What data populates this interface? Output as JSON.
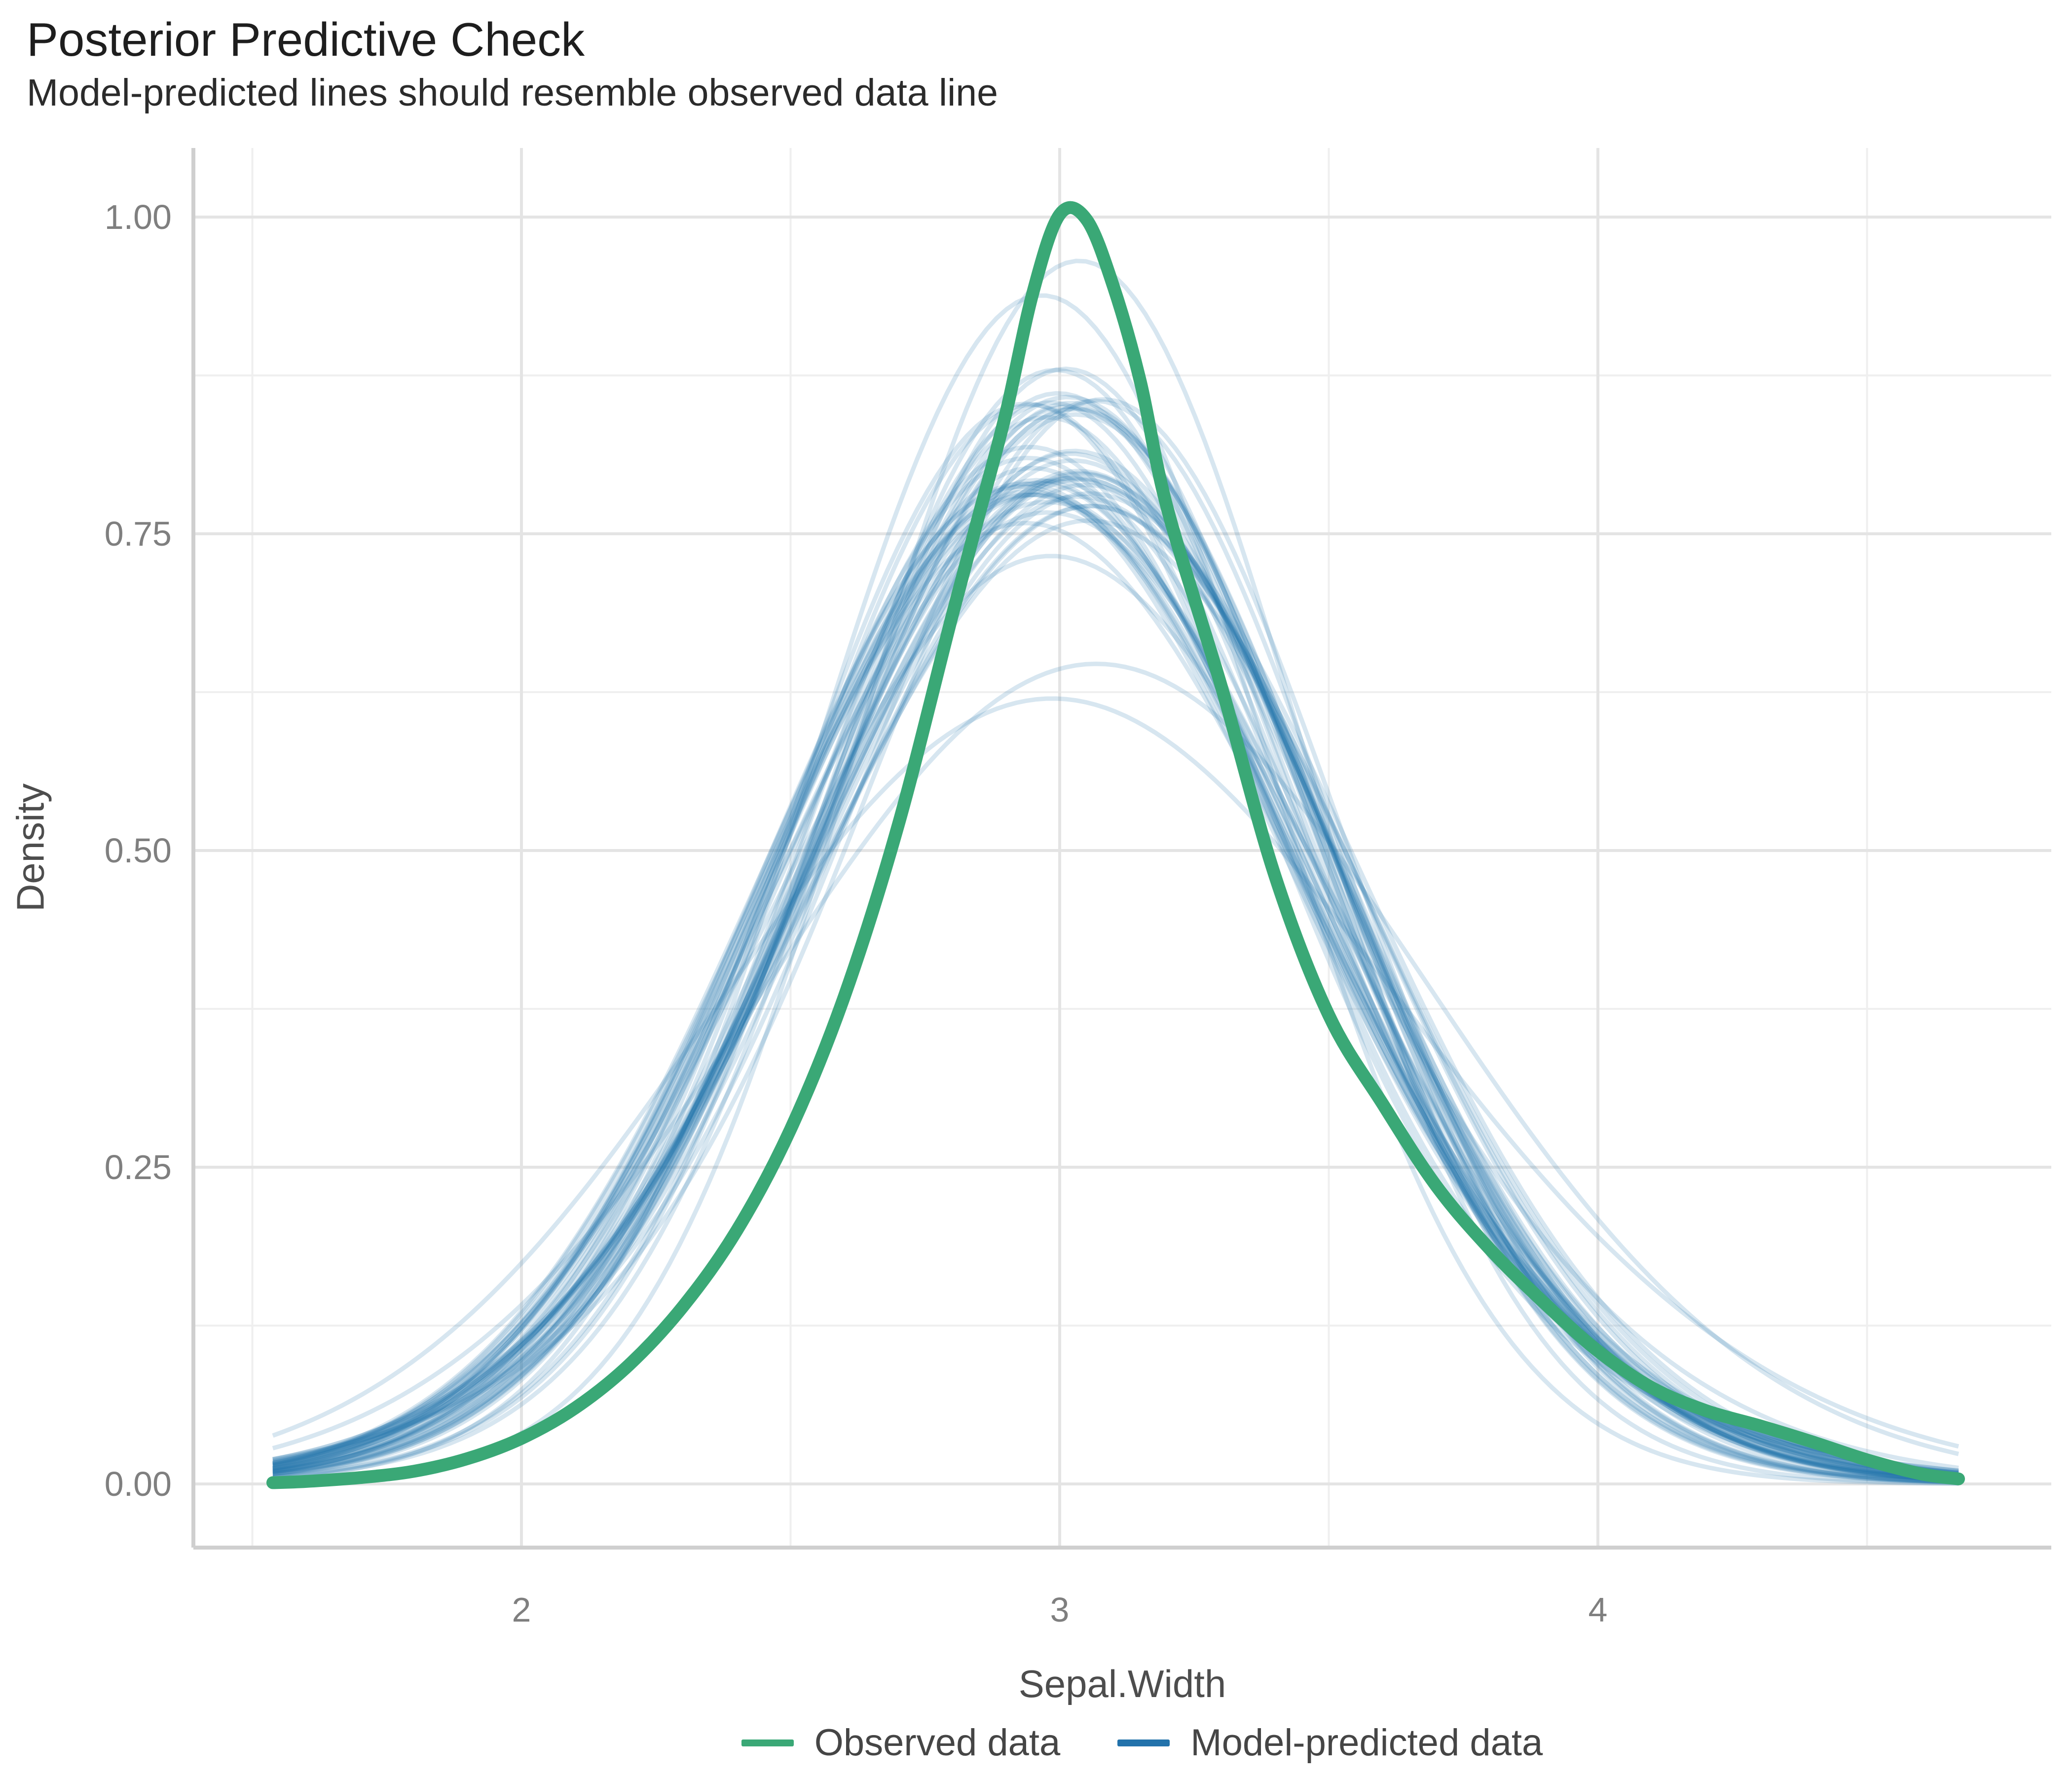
{
  "chart_data": {
    "type": "line",
    "title": "Posterior Predictive Check",
    "subtitle": "Model-predicted lines should resemble observed data line",
    "xlabel": "Sepal.Width",
    "ylabel": "Density",
    "xlim": [
      1.39,
      4.845
    ],
    "ylim": [
      -0.05,
      1.055
    ],
    "grid": {
      "x_major": [
        2,
        3,
        4
      ],
      "x_minor": [
        1.5,
        2.5,
        3.5,
        4.5
      ],
      "y_major": [
        0,
        0.25,
        0.5,
        0.75,
        1.0
      ],
      "y_minor": [
        0.125,
        0.375,
        0.625,
        0.875
      ]
    },
    "x_ticks": [
      {
        "value": 2,
        "label": "2"
      },
      {
        "value": 3,
        "label": "3"
      },
      {
        "value": 4,
        "label": "4"
      }
    ],
    "y_ticks": [
      {
        "value": 0,
        "label": "0.00"
      },
      {
        "value": 0.25,
        "label": "0.25"
      },
      {
        "value": 0.5,
        "label": "0.50"
      },
      {
        "value": 0.75,
        "label": "0.75"
      },
      {
        "value": 1,
        "label": "1.00"
      }
    ],
    "legend": {
      "position": "bottom",
      "items": [
        {
          "name": "Observed data",
          "color": "#3aa876"
        },
        {
          "name": "Model-predicted data",
          "color": "#2272ab"
        }
      ]
    },
    "series": {
      "observed": {
        "name": "Observed data",
        "color": "#3aa876",
        "stroke_width": 26,
        "x": [
          1.538,
          1.6,
          1.7,
          1.8,
          1.9,
          2.0,
          2.1,
          2.2,
          2.3,
          2.4,
          2.5,
          2.6,
          2.7,
          2.8,
          2.85,
          2.9,
          2.95,
          3.0,
          3.05,
          3.1,
          3.15,
          3.2,
          3.3,
          3.4,
          3.5,
          3.6,
          3.7,
          3.8,
          3.9,
          4.0,
          4.1,
          4.2,
          4.3,
          4.4,
          4.5,
          4.6,
          4.67
        ],
        "y": [
          0.001,
          0.002,
          0.005,
          0.01,
          0.02,
          0.036,
          0.06,
          0.094,
          0.14,
          0.2,
          0.28,
          0.385,
          0.52,
          0.685,
          0.765,
          0.845,
          0.94,
          1.002,
          0.998,
          0.945,
          0.87,
          0.77,
          0.63,
          0.48,
          0.37,
          0.3,
          0.235,
          0.185,
          0.143,
          0.105,
          0.076,
          0.058,
          0.046,
          0.033,
          0.019,
          0.008,
          0.004
        ]
      },
      "predicted": {
        "name": "Model-predicted data",
        "color": "#2272ab",
        "stroke_width": 9,
        "stroke_opacity": 0.18,
        "n_draws": 50,
        "x_range": [
          1.538,
          4.67
        ],
        "draw_params_format": "[mean1, sd1, mean2_offset, sd2, weight1] ; density = weight1*Normal(mean1,sd1) + (1-weight1)*Normal(mean1+mean2_offset,sd2)",
        "draws": [
          [
            2.98,
            0.46,
            0.2,
            0.55,
            0.7
          ],
          [
            3.05,
            0.44,
            -0.22,
            0.52,
            0.75
          ],
          [
            2.92,
            0.5,
            0.28,
            0.6,
            0.65
          ],
          [
            3.1,
            0.42,
            -0.3,
            0.58,
            0.72
          ],
          [
            3.02,
            0.405,
            0.1,
            0.44,
            0.8
          ],
          [
            2.88,
            0.47,
            0.3,
            0.55,
            0.68
          ],
          [
            3.08,
            0.48,
            -0.18,
            0.5,
            0.66
          ],
          [
            2.95,
            0.43,
            0.25,
            0.62,
            0.74
          ],
          [
            2.98,
            0.415,
            -0.08,
            0.46,
            0.78
          ],
          [
            2.9,
            0.45,
            0.32,
            0.58,
            0.7
          ],
          [
            3.12,
            0.5,
            -0.26,
            0.54,
            0.69
          ],
          [
            2.97,
            0.41,
            0.22,
            0.6,
            0.73
          ],
          [
            3.04,
            0.53,
            -0.15,
            0.49,
            0.64
          ],
          [
            2.86,
            0.48,
            0.35,
            0.56,
            0.67
          ],
          [
            3.06,
            0.44,
            -0.2,
            0.52,
            0.71
          ],
          [
            2.94,
            0.51,
            0.18,
            0.47,
            0.63
          ],
          [
            3.09,
            0.46,
            -0.28,
            0.57,
            0.7
          ],
          [
            2.91,
            0.42,
            0.26,
            0.61,
            0.72
          ],
          [
            3.01,
            0.54,
            -0.1,
            0.45,
            0.61
          ],
          [
            2.89,
            0.47,
            0.3,
            0.53,
            0.68
          ],
          [
            3.11,
            0.49,
            -0.24,
            0.55,
            0.7
          ],
          [
            2.96,
            0.43,
            0.2,
            0.59,
            0.74
          ],
          [
            3.03,
            0.52,
            -0.16,
            0.48,
            0.63
          ],
          [
            2.87,
            0.46,
            0.33,
            0.57,
            0.69
          ],
          [
            3.07,
            0.45,
            -0.19,
            0.51,
            0.71
          ],
          [
            2.93,
            0.5,
            0.24,
            0.46,
            0.62
          ],
          [
            3.1,
            0.47,
            -0.27,
            0.56,
            0.7
          ],
          [
            2.99,
            0.41,
            0.21,
            0.6,
            0.73
          ],
          [
            3.0,
            0.53,
            -0.13,
            0.47,
            0.64
          ],
          [
            2.85,
            0.58,
            0.45,
            0.65,
            0.6
          ],
          [
            3.05,
            0.44,
            -0.21,
            0.53,
            0.72
          ],
          [
            2.95,
            0.52,
            0.17,
            0.46,
            0.61
          ],
          [
            3.08,
            0.46,
            -0.25,
            0.58,
            0.7
          ],
          [
            2.92,
            0.42,
            0.28,
            0.62,
            0.73
          ],
          [
            3.0,
            0.6,
            0.25,
            0.62,
            0.7
          ],
          [
            2.88,
            0.45,
            0.31,
            0.54,
            0.68
          ],
          [
            3.12,
            0.48,
            -0.29,
            0.56,
            0.69
          ],
          [
            2.97,
            0.42,
            0.23,
            0.59,
            0.72
          ],
          [
            3.04,
            0.51,
            -0.14,
            0.48,
            0.65
          ],
          [
            2.9,
            0.49,
            0.27,
            0.52,
            0.67
          ],
          [
            3.06,
            0.43,
            -0.22,
            0.57,
            0.71
          ],
          [
            2.94,
            0.5,
            0.19,
            0.45,
            0.62
          ],
          [
            3.09,
            0.47,
            -0.26,
            0.55,
            0.7
          ],
          [
            2.91,
            0.44,
            0.29,
            0.61,
            0.72
          ],
          [
            3.01,
            0.54,
            -0.12,
            0.46,
            0.63
          ],
          [
            2.86,
            0.46,
            0.34,
            0.54,
            0.67
          ],
          [
            3.07,
            0.45,
            -0.18,
            0.5,
            0.7
          ],
          [
            2.96,
            0.53,
            0.16,
            0.47,
            0.62
          ],
          [
            3.11,
            0.42,
            -0.31,
            0.6,
            0.74
          ],
          [
            2.98,
            0.49,
            0.25,
            0.51,
            0.66
          ]
        ]
      }
    },
    "colors": {
      "background": "#ffffff",
      "grid_major": "#e4e4e4",
      "grid_minor": "#efefef",
      "axis_line": "#cfcfcf",
      "tick_text": "#7f7f7f",
      "axis_title_text": "#4d4d4d",
      "title_text": "#1e1e1e",
      "subtitle_text": "#2b2b2b",
      "legend_text": "#454545"
    }
  }
}
